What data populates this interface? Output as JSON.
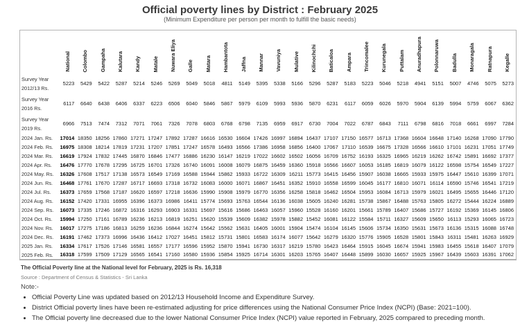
{
  "header": {
    "title": "Official poverty lines by District : February 2025",
    "subtitle": "(Minimum Expenditure per person per month to fulfill the basic needs)"
  },
  "table": {
    "columns": [
      "National",
      "Colombo",
      "Gampaha",
      "Kalutara",
      "Kandy",
      "Matale",
      "Nuwara Eliya",
      "Galle",
      "Matara",
      "Hambantota",
      "Jaffna",
      "Mannar",
      "Vavuniya",
      "Mulative",
      "Kilinochchi",
      "Baticaloa",
      "Ampara",
      "Trincomalee",
      "Kurunegala",
      "Puttalam",
      "Anuradhapura",
      "Polonnaruwa",
      "Badulla",
      "Monaragala",
      "Ratnapura",
      "Kegalle"
    ],
    "rows": [
      {
        "label": "Survey Year",
        "label2": "2012/13 Rs.",
        "bold_first": false,
        "values": [
          5223,
          5429,
          5422,
          5287,
          5214,
          5246,
          5269,
          5049,
          5018,
          4811,
          5149,
          5395,
          5338,
          5166,
          5296,
          5287,
          5183,
          5223,
          5046,
          5218,
          4941,
          5151,
          5007,
          4746,
          5075,
          5273
        ]
      },
      {
        "label": "Survey Year",
        "label2": "2016 Rs.",
        "bold_first": false,
        "values": [
          6117,
          6640,
          6438,
          6406,
          6337,
          6223,
          6506,
          6040,
          5846,
          5867,
          5979,
          6109,
          5993,
          5936,
          5870,
          6231,
          6117,
          6059,
          6026,
          5970,
          5904,
          6139,
          5994,
          5759,
          6067,
          6362
        ]
      },
      {
        "label": "Survey Year",
        "label2": "2019 Rs.",
        "bold_first": false,
        "values": [
          6966,
          7513,
          7474,
          7312,
          7071,
          7061,
          7326,
          7078,
          6803,
          6768,
          6798,
          7135,
          6959,
          6917,
          6730,
          7004,
          7022,
          6787,
          6843,
          7111,
          6798,
          6816,
          7018,
          6661,
          6997,
          7284
        ]
      },
      {
        "label": "2024 Jan. Rs.",
        "bold_first": true,
        "values": [
          17014,
          18350,
          18256,
          17860,
          17271,
          17247,
          17892,
          17287,
          16616,
          16530,
          16604,
          17426,
          16997,
          16894,
          16437,
          17107,
          17150,
          16577,
          16713,
          17368,
          16604,
          16648,
          17140,
          16268,
          17090,
          17790
        ]
      },
      {
        "label": "2024 Feb. Rs.",
        "bold_first": true,
        "values": [
          16975,
          18308,
          18214,
          17819,
          17231,
          17207,
          17851,
          17247,
          16578,
          16493,
          16566,
          17386,
          16958,
          16856,
          16400,
          17067,
          17110,
          16539,
          16675,
          17328,
          16566,
          16610,
          17101,
          16231,
          17051,
          17749
        ]
      },
      {
        "label": "2024 Mar. Rs.",
        "bold_first": true,
        "values": [
          16619,
          17924,
          17832,
          17445,
          16870,
          16846,
          17477,
          16886,
          16230,
          16147,
          16219,
          17022,
          16602,
          16502,
          16056,
          16709,
          16752,
          16193,
          16325,
          16965,
          16219,
          16262,
          16742,
          15891,
          16692,
          17377
        ]
      },
      {
        "label": "2024 Apr. Rs.",
        "bold_first": true,
        "values": [
          16476,
          17770,
          17678,
          17295,
          16725,
          16701,
          17326,
          16740,
          16091,
          16008,
          16079,
          16875,
          16459,
          16360,
          15918,
          16566,
          16607,
          16053,
          16185,
          16819,
          16079,
          16122,
          16598,
          15754,
          16549,
          17227
        ]
      },
      {
        "label": "2024 May. Rs.",
        "bold_first": true,
        "values": [
          16326,
          17608,
          17517,
          17138,
          16573,
          16549,
          17169,
          16588,
          15944,
          15862,
          15933,
          16722,
          16309,
          16211,
          15773,
          16415,
          16456,
          15907,
          16038,
          16665,
          15933,
          15975,
          16447,
          15610,
          16399,
          17071
        ]
      },
      {
        "label": "2024 Jun. Rs.",
        "bold_first": true,
        "values": [
          16468,
          17761,
          17670,
          17287,
          16717,
          16693,
          17318,
          16732,
          16083,
          16000,
          16071,
          16867,
          16451,
          16352,
          15910,
          16558,
          16599,
          16045,
          16177,
          16810,
          16071,
          16114,
          16590,
          15746,
          16541,
          17219
        ]
      },
      {
        "label": "2024 Jul. Rs.",
        "bold_first": true,
        "values": [
          16373,
          17659,
          17568,
          17187,
          16620,
          16597,
          17218,
          16636,
          15990,
          15908,
          15979,
          16770,
          16356,
          16258,
          15818,
          16462,
          16504,
          15953,
          16084,
          16713,
          15979,
          16021,
          16495,
          15655,
          16446,
          17120
        ]
      },
      {
        "label": "2024 Aug. Rs.",
        "bold_first": true,
        "values": [
          16152,
          17420,
          17331,
          16955,
          16396,
          16373,
          16986,
          16411,
          15774,
          15693,
          15763,
          16544,
          16136,
          16038,
          15605,
          16240,
          16281,
          15738,
          15867,
          16488,
          15763,
          15805,
          16272,
          15444,
          16224,
          16889
        ]
      },
      {
        "label": "2024 Sep. Rs.",
        "bold_first": true,
        "values": [
          16073,
          17335,
          17246,
          16872,
          16316,
          16293,
          16903,
          16331,
          15697,
          15616,
          15686,
          16463,
          16057,
          15960,
          15528,
          16160,
          16201,
          15661,
          15789,
          16407,
          15686,
          15727,
          16192,
          15369,
          16145,
          16806
        ]
      },
      {
        "label": "2024 Oct. Rs.",
        "bold_first": true,
        "values": [
          15994,
          17250,
          17161,
          16789,
          16236,
          16213,
          16819,
          16251,
          15620,
          15539,
          15609,
          16382,
          15978,
          15882,
          15452,
          16081,
          16122,
          15584,
          15711,
          16327,
          15609,
          15650,
          16113,
          15293,
          16065,
          16723
        ]
      },
      {
        "label": "2024 Nov. Rs.",
        "bold_first": true,
        "values": [
          16017,
          17275,
          17186,
          16813,
          16259,
          16236,
          16844,
          16274,
          15642,
          15562,
          15631,
          16405,
          16001,
          15904,
          15474,
          16104,
          16145,
          15606,
          15734,
          16350,
          15631,
          15673,
          16136,
          15315,
          16088,
          16748
        ]
      },
      {
        "label": "2024 Dec. Rs.",
        "bold_first": true,
        "values": [
          16191,
          17462,
          17373,
          16996,
          16436,
          16412,
          17027,
          16451,
          15812,
          15731,
          15801,
          16583,
          16174,
          16077,
          15642,
          16279,
          16320,
          15776,
          15905,
          16528,
          15801,
          15843,
          16311,
          15481,
          16263,
          16929
        ]
      },
      {
        "label": "2025 Jan. Rs.",
        "bold_first": true,
        "values": [
          16334,
          17617,
          17526,
          17146,
          16581,
          16557,
          17177,
          16596,
          15952,
          15870,
          15941,
          16730,
          16317,
          16219,
          15780,
          16423,
          16464,
          15915,
          16045,
          16674,
          15941,
          15983,
          16455,
          15618,
          16407,
          17079
        ]
      },
      {
        "label": "2025 Feb. Rs.",
        "bold_first": true,
        "values": [
          16318,
          17599,
          17509,
          17129,
          16565,
          16541,
          17160,
          16580,
          15936,
          15854,
          15925,
          16714,
          16301,
          16203,
          15765,
          16407,
          16448,
          15899,
          16030,
          16657,
          15925,
          15967,
          16439,
          15603,
          16391,
          17062
        ]
      }
    ]
  },
  "footer": {
    "highlight": "The Official Poverty line at the National level for February, 2025 is Rs. 16,318",
    "source": "Source : Department of Census & Statistics - Sri Lanka",
    "note_label": "Note:-",
    "notes": [
      "Official Poverty Line was updated based on 2012/13 Household Income and Expenditure Survey.",
      "District Official poverty lines have been re-estimated adjusting for price differences using the National Consumer Price Index (NCPI) (Base: 2021=100).",
      "The Official poverty line decreased due to the lower National Consumer Price Index (NCPI) value reported in February, 2025 compared to preceding month."
    ]
  }
}
